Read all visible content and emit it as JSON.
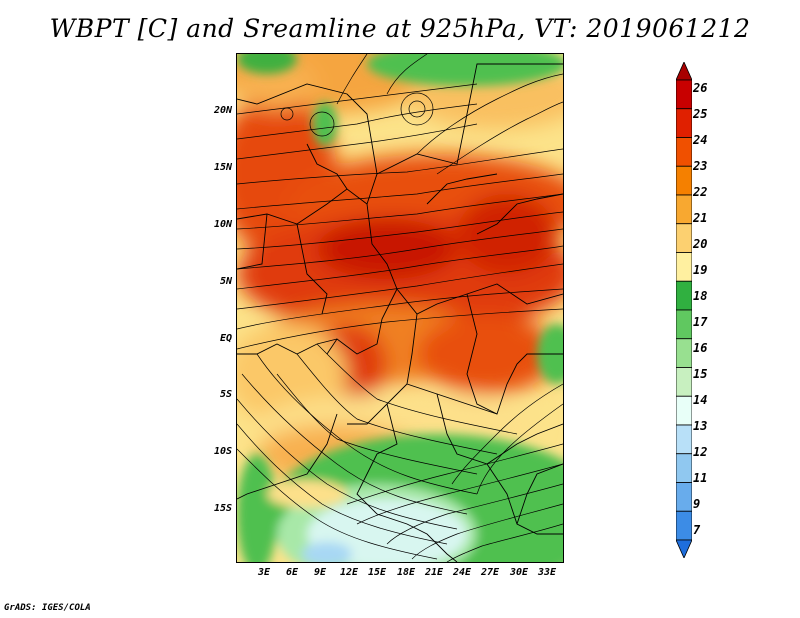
{
  "title": "WBPT [C] and Sreamline at 925hPa, VT: 2019061212",
  "credit": "GrADS: IGES/COLA",
  "map": {
    "lat_labels": [
      "20N",
      "15N",
      "10N",
      "5N",
      "EQ",
      "5S",
      "10S",
      "15S"
    ],
    "lat_values": [
      20,
      15,
      10,
      5,
      0,
      -5,
      -10,
      -15
    ],
    "lon_labels": [
      "3E",
      "6E",
      "9E",
      "12E",
      "15E",
      "18E",
      "21E",
      "24E",
      "27E",
      "30E",
      "33E"
    ],
    "lon_values": [
      3,
      6,
      9,
      12,
      15,
      18,
      21,
      24,
      27,
      30,
      33
    ]
  },
  "colorbar": {
    "labels": [
      "26",
      "25",
      "24",
      "23",
      "22",
      "21",
      "20",
      "19",
      "18",
      "17",
      "16",
      "15",
      "14",
      "13",
      "12",
      "11",
      "9",
      "7"
    ],
    "colors": [
      "#a80000",
      "#c80000",
      "#e02000",
      "#f05000",
      "#f58000",
      "#f8a830",
      "#fcd070",
      "#fff0a0",
      "#30b040",
      "#60c860",
      "#98e090",
      "#c8f0c0",
      "#e8fff8",
      "#b8e0f8",
      "#90c8f0",
      "#68acec",
      "#3c8ce6",
      "#1e6edc"
    ]
  }
}
